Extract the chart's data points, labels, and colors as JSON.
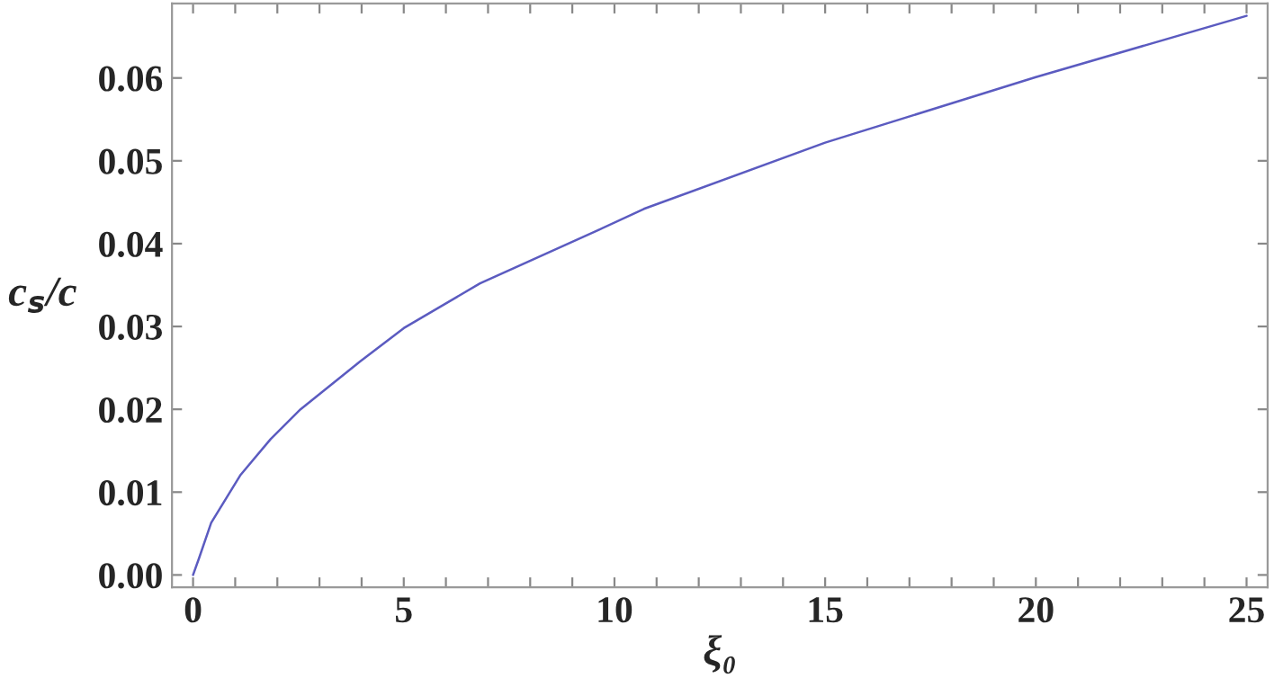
{
  "chart_data": {
    "type": "line",
    "xlabel": "ξ₀",
    "ylabel": "c$_{s}$/c",
    "x": [
      0,
      0.14,
      0.43,
      1.13,
      1.84,
      2.55,
      3.97,
      5,
      6.81,
      9.64,
      10.7,
      15,
      20,
      25
    ],
    "series": [
      {
        "color": "#5b5bc0",
        "values": [
          0,
          0.002,
          0.0063,
          0.0121,
          0.0164,
          0.02,
          0.0258,
          0.0298,
          0.0352,
          0.0417,
          0.0442,
          0.0522,
          0.0601,
          0.0675
        ]
      }
    ],
    "xlim": [
      -0.5,
      25.5
    ],
    "ylim": [
      -0.0015,
      0.069
    ],
    "xticks": [
      0,
      {
        "value": 1,
        "label": null
      },
      {
        "value": 2,
        "label": null
      },
      {
        "value": 3,
        "label": null
      },
      {
        "value": 4,
        "label": null
      },
      5,
      {
        "value": 6,
        "label": null
      },
      {
        "value": 7,
        "label": null
      },
      {
        "value": 8,
        "label": null
      },
      {
        "value": 9,
        "label": null
      },
      10,
      {
        "value": 11,
        "label": null
      },
      {
        "value": 12,
        "label": null
      },
      {
        "value": 13,
        "label": null
      },
      {
        "value": 14,
        "label": null
      },
      15,
      {
        "value": 16,
        "label": null
      },
      {
        "value": 17,
        "label": null
      },
      {
        "value": 18,
        "label": null
      },
      {
        "value": 19,
        "label": null
      },
      20,
      {
        "value": 21,
        "label": null
      },
      {
        "value": 22,
        "label": null
      },
      {
        "value": 23,
        "label": null
      },
      {
        "value": 24,
        "label": null
      },
      25
    ],
    "yticks": [
      {
        "value": 0,
        "label": "0.00"
      },
      {
        "value": 0.01,
        "label": "0.01"
      },
      {
        "value": 0.02,
        "label": "0.02"
      },
      {
        "value": 0.03,
        "label": "0.03"
      },
      {
        "value": 0.04,
        "label": "0.04"
      },
      {
        "value": 0.05,
        "label": "0.05"
      },
      {
        "value": 0.06,
        "label": "0.06"
      }
    ],
    "marker": "none",
    "line_style": "solid"
  }
}
